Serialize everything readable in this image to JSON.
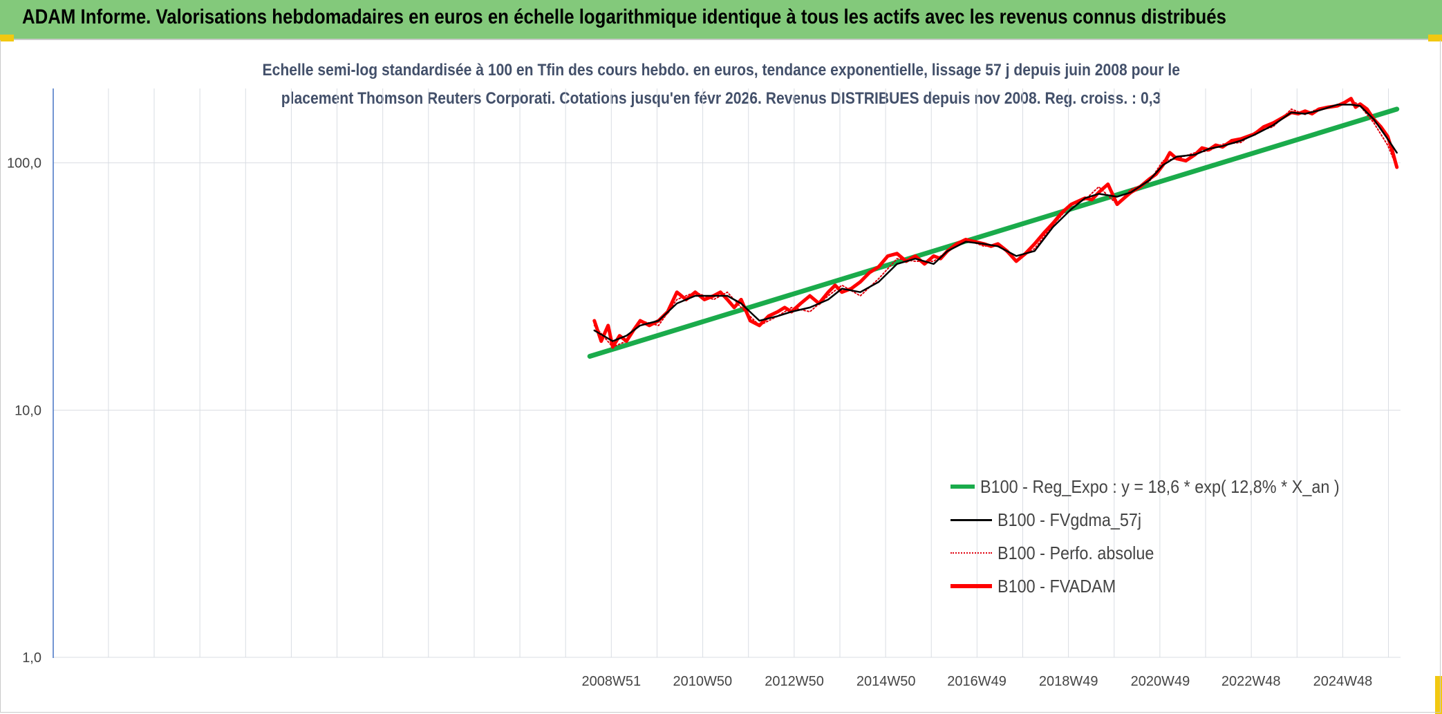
{
  "header": {
    "title": "ADAM Informe. Valorisations hebdomadaires en euros en échelle logarithmique identique à tous les actifs avec les revenus connus distribués"
  },
  "chart_data": {
    "type": "line",
    "title_lines": [
      "Echelle semi-log standardisée à 100 en Tfin des cours hebdo. en euros, tendance exponentielle, lissage 57 j depuis juin 2008 pour le",
      "placement Thomson Reuters Corporati. Cotations jusqu'en févr 2026. Revenus DISTRIBUES depuis nov 2008. Reg. croiss. : 0,3"
    ],
    "y_scale": "log",
    "ylim": [
      1,
      200
    ],
    "y_ticks": [
      "1,0",
      "10,0",
      "100,0"
    ],
    "y_tick_values": [
      1,
      10,
      100
    ],
    "x_ticks": [
      "2008W51",
      "2010W50",
      "2012W50",
      "2014W50",
      "2016W49",
      "2018W49",
      "2020W49",
      "2022W48",
      "2024W48"
    ],
    "x_tick_years": [
      2008.97,
      2010.96,
      2012.96,
      2014.96,
      2016.94,
      2018.94,
      2020.94,
      2022.92,
      2024.92
    ],
    "x_range_years": [
      1996.8,
      2026.18
    ],
    "grid": true,
    "legend_position": "bottom-right",
    "series": [
      {
        "name": "B100 - Reg_Expo : y = 18,6 * exp( 12,8% *  X_an )",
        "color": "#1aab4b",
        "style": "solid-thick",
        "x": [
          2008.5,
          2026.1
        ],
        "y": [
          16.5,
          165
        ]
      },
      {
        "name": "B100 - FVgdma_57j",
        "color": "#000000",
        "style": "solid",
        "x": [
          2008.6,
          2009.0,
          2009.3,
          2009.6,
          2010.0,
          2010.4,
          2010.8,
          2011.2,
          2011.5,
          2011.8,
          2012.2,
          2012.6,
          2012.9,
          2013.3,
          2013.7,
          2014.0,
          2014.4,
          2014.8,
          2015.2,
          2015.6,
          2016.0,
          2016.3,
          2016.7,
          2017.1,
          2017.4,
          2017.8,
          2018.2,
          2018.6,
          2019.0,
          2019.3,
          2019.6,
          2020.0,
          2020.3,
          2020.7,
          2021.0,
          2021.3,
          2021.7,
          2022.0,
          2022.3,
          2022.7,
          2023.0,
          2023.4,
          2023.8,
          2024.1,
          2024.4,
          2024.8,
          2025.1,
          2025.3,
          2025.6,
          2025.9,
          2026.1
        ],
        "y": [
          21,
          19,
          20,
          22,
          23,
          27,
          29,
          29,
          29,
          27,
          23,
          24,
          25,
          26,
          28,
          31,
          30,
          33,
          39,
          41,
          39,
          44,
          48,
          47,
          46,
          42,
          44,
          55,
          65,
          72,
          75,
          73,
          76,
          85,
          98,
          106,
          108,
          114,
          117,
          123,
          130,
          142,
          160,
          158,
          163,
          172,
          172,
          170,
          150,
          125,
          110
        ]
      },
      {
        "name": "B100 - Perfo. absolue",
        "color": "#e0000d",
        "style": "dotted",
        "x": [
          2008.6,
          2009.0,
          2009.3,
          2009.6,
          2010.0,
          2010.4,
          2010.8,
          2011.2,
          2011.5,
          2011.8,
          2012.2,
          2012.6,
          2012.9,
          2013.3,
          2013.7,
          2014.0,
          2014.4,
          2014.8,
          2015.2,
          2015.6,
          2016.0,
          2016.3,
          2016.7,
          2017.1,
          2017.4,
          2017.8,
          2018.2,
          2018.6,
          2019.0,
          2019.3,
          2019.6,
          2020.0,
          2020.3,
          2020.7,
          2021.0,
          2021.3,
          2021.7,
          2022.0,
          2022.3,
          2022.7,
          2023.0,
          2023.4,
          2023.8,
          2024.1,
          2024.4,
          2024.8,
          2025.1,
          2025.3,
          2025.6,
          2025.9,
          2026.1
        ],
        "y": [
          22,
          18,
          19,
          23,
          22,
          28,
          30,
          28,
          30,
          26,
          22,
          24,
          26,
          25,
          29,
          32,
          29,
          34,
          41,
          40,
          40,
          44,
          49,
          46,
          47,
          40,
          45,
          56,
          68,
          71,
          80,
          68,
          78,
          84,
          102,
          104,
          110,
          112,
          119,
          121,
          133,
          140,
          165,
          157,
          166,
          170,
          180,
          170,
          145,
          118,
          96
        ]
      },
      {
        "name": "B100 - FVADAM",
        "color": "#ff0000",
        "style": "solid-thick",
        "x": [
          2008.6,
          2008.75,
          2008.9,
          2009.0,
          2009.15,
          2009.3,
          2009.45,
          2009.6,
          2009.8,
          2010.0,
          2010.2,
          2010.4,
          2010.6,
          2010.8,
          2011.0,
          2011.2,
          2011.35,
          2011.5,
          2011.65,
          2011.8,
          2012.0,
          2012.2,
          2012.4,
          2012.6,
          2012.75,
          2012.9,
          2013.1,
          2013.3,
          2013.5,
          2013.7,
          2013.85,
          2014.0,
          2014.2,
          2014.4,
          2014.6,
          2014.8,
          2015.0,
          2015.2,
          2015.4,
          2015.6,
          2015.8,
          2016.0,
          2016.15,
          2016.3,
          2016.5,
          2016.7,
          2016.9,
          2017.1,
          2017.25,
          2017.4,
          2017.6,
          2017.8,
          2018.0,
          2018.2,
          2018.4,
          2018.6,
          2018.8,
          2019.0,
          2019.15,
          2019.3,
          2019.45,
          2019.6,
          2019.8,
          2020.0,
          2020.15,
          2020.3,
          2020.5,
          2020.7,
          2020.85,
          2021.0,
          2021.15,
          2021.3,
          2021.5,
          2021.7,
          2021.85,
          2022.0,
          2022.15,
          2022.3,
          2022.5,
          2022.7,
          2022.85,
          2023.0,
          2023.2,
          2023.4,
          2023.6,
          2023.8,
          2023.95,
          2024.1,
          2024.25,
          2024.4,
          2024.6,
          2024.8,
          2024.95,
          2025.1,
          2025.2,
          2025.3,
          2025.45,
          2025.6,
          2025.75,
          2025.9,
          2026.0,
          2026.1
        ],
        "y": [
          23,
          19,
          22,
          18,
          20,
          19,
          21,
          23,
          22,
          23,
          25,
          30,
          28,
          30,
          28,
          29,
          30,
          28,
          26,
          28,
          23,
          22,
          24,
          25,
          26,
          25,
          27,
          29,
          27,
          30,
          32,
          30,
          31,
          33,
          36,
          38,
          42,
          43,
          40,
          42,
          39,
          42,
          41,
          44,
          47,
          49,
          48,
          47,
          46,
          47,
          44,
          40,
          43,
          47,
          52,
          57,
          63,
          68,
          70,
          72,
          71,
          76,
          82,
          68,
          72,
          76,
          80,
          86,
          90,
          98,
          110,
          104,
          102,
          108,
          115,
          113,
          118,
          116,
          123,
          125,
          128,
          131,
          140,
          145,
          152,
          160,
          158,
          162,
          158,
          165,
          168,
          170,
          175,
          182,
          168,
          173,
          165,
          150,
          140,
          128,
          112,
          96
        ]
      }
    ],
    "legend": [
      {
        "label": "B100 - Reg_Expo : y = 18,6 * exp( 12,8% *  X_an )",
        "color": "#1aab4b",
        "style": "solid-thick"
      },
      {
        "label": "B100 - FVgdma_57j",
        "color": "#000000",
        "style": "solid"
      },
      {
        "label": "B100 - Perfo. absolue",
        "color": "#e0000d",
        "style": "dotted"
      },
      {
        "label": "B100 - FVADAM",
        "color": "#ff0000",
        "style": "solid-thick"
      }
    ]
  },
  "colors": {
    "banner_bg": "#83c97b",
    "corner_accent": "#f2c811",
    "subtitle_text": "#43506a",
    "grid": "#d9dde3",
    "y_axis": "#4472c4"
  }
}
